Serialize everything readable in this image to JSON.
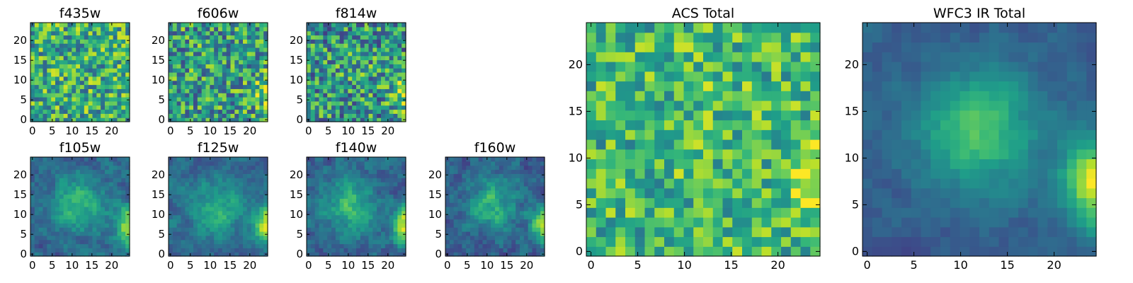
{
  "chart_data": [
    {
      "type": "heatmap",
      "title": "f435w",
      "xlim": [
        0,
        24
      ],
      "ylim": [
        0,
        24
      ],
      "xticks": [
        0,
        5,
        10,
        15,
        20
      ],
      "yticks": [
        0,
        5,
        10,
        15,
        20
      ],
      "grid": 24,
      "colormap": "viridis",
      "model": {
        "kind": "noise",
        "base": 0.62,
        "noise": 0.32,
        "blob": 0.0,
        "blob_x": 12,
        "blob_y": 13,
        "blob_sigma": 4,
        "edge": 0.0,
        "edge_y": 7,
        "seed": 11
      }
    },
    {
      "type": "heatmap",
      "title": "f606w",
      "xlim": [
        0,
        24
      ],
      "ylim": [
        0,
        24
      ],
      "xticks": [
        0,
        5,
        10,
        15,
        20
      ],
      "yticks": [
        0,
        5,
        10,
        15,
        20
      ],
      "grid": 24,
      "colormap": "viridis",
      "model": {
        "kind": "noise",
        "base": 0.55,
        "noise": 0.34,
        "blob": 0.05,
        "blob_x": 12,
        "blob_y": 13,
        "blob_sigma": 4,
        "edge": 0.35,
        "edge_y": 7,
        "seed": 23
      }
    },
    {
      "type": "heatmap",
      "title": "f814w",
      "xlim": [
        0,
        24
      ],
      "ylim": [
        0,
        24
      ],
      "xticks": [
        0,
        5,
        10,
        15,
        20
      ],
      "yticks": [
        0,
        5,
        10,
        15,
        20
      ],
      "grid": 24,
      "colormap": "viridis",
      "model": {
        "kind": "noise",
        "base": 0.52,
        "noise": 0.34,
        "blob": 0.05,
        "blob_x": 12,
        "blob_y": 13,
        "blob_sigma": 4,
        "edge": 0.45,
        "edge_y": 7,
        "seed": 37
      }
    },
    {
      "type": "heatmap",
      "title": "f105w",
      "xlim": [
        0,
        24
      ],
      "ylim": [
        0,
        24
      ],
      "xticks": [
        0,
        5,
        10,
        15,
        20
      ],
      "yticks": [
        0,
        5,
        10,
        15,
        20
      ],
      "grid": 24,
      "colormap": "viridis",
      "model": {
        "kind": "smooth",
        "base": 0.33,
        "noise": 0.16,
        "blob": 0.35,
        "blob_x": 11,
        "blob_y": 12,
        "blob_sigma": 4.5,
        "edge": 0.6,
        "edge_y": 7,
        "seed": 41
      }
    },
    {
      "type": "heatmap",
      "title": "f125w",
      "xlim": [
        0,
        24
      ],
      "ylim": [
        0,
        24
      ],
      "xticks": [
        0,
        5,
        10,
        15,
        20
      ],
      "yticks": [
        0,
        5,
        10,
        15,
        20
      ],
      "grid": 24,
      "colormap": "viridis",
      "model": {
        "kind": "smooth",
        "base": 0.34,
        "noise": 0.14,
        "blob": 0.3,
        "blob_x": 11,
        "blob_y": 11,
        "blob_sigma": 4.5,
        "edge": 0.6,
        "edge_y": 7,
        "seed": 53
      }
    },
    {
      "type": "heatmap",
      "title": "f140w",
      "xlim": [
        0,
        24
      ],
      "ylim": [
        0,
        24
      ],
      "xticks": [
        0,
        5,
        10,
        15,
        20
      ],
      "yticks": [
        0,
        5,
        10,
        15,
        20
      ],
      "grid": 24,
      "colormap": "viridis",
      "model": {
        "kind": "smooth",
        "base": 0.33,
        "noise": 0.16,
        "blob": 0.35,
        "blob_x": 10,
        "blob_y": 12,
        "blob_sigma": 4.5,
        "edge": 0.6,
        "edge_y": 7,
        "seed": 67
      }
    },
    {
      "type": "heatmap",
      "title": "f160w",
      "xlim": [
        0,
        24
      ],
      "ylim": [
        0,
        24
      ],
      "xticks": [
        0,
        5,
        10,
        15,
        20
      ],
      "yticks": [
        0,
        5,
        10,
        15,
        20
      ],
      "grid": 24,
      "colormap": "viridis",
      "model": {
        "kind": "smooth",
        "base": 0.3,
        "noise": 0.17,
        "blob": 0.35,
        "blob_x": 11,
        "blob_y": 12,
        "blob_sigma": 4.5,
        "edge": 0.6,
        "edge_y": 7,
        "seed": 79
      }
    },
    {
      "type": "heatmap",
      "title": "ACS Total",
      "xlim": [
        0,
        24
      ],
      "ylim": [
        0,
        24
      ],
      "xticks": [
        0,
        5,
        10,
        15,
        20
      ],
      "yticks": [
        0,
        5,
        10,
        15,
        20
      ],
      "grid": 24,
      "colormap": "viridis",
      "model": {
        "kind": "noise",
        "base": 0.66,
        "noise": 0.26,
        "blob": 0.05,
        "blob_x": 12,
        "blob_y": 13,
        "blob_sigma": 4,
        "edge": 0.3,
        "edge_y": 7,
        "seed": 89
      }
    },
    {
      "type": "heatmap",
      "title": "WFC3 IR Total",
      "xlim": [
        0,
        24
      ],
      "ylim": [
        0,
        24
      ],
      "xticks": [
        0,
        5,
        10,
        15,
        20
      ],
      "yticks": [
        0,
        5,
        10,
        15,
        20
      ],
      "grid": 24,
      "colormap": "viridis",
      "model": {
        "kind": "smooth",
        "base": 0.3,
        "noise": 0.08,
        "blob": 0.42,
        "blob_x": 11.5,
        "blob_y": 12.5,
        "blob_sigma": 4.2,
        "edge": 0.68,
        "edge_y": 7,
        "seed": 97
      }
    }
  ]
}
